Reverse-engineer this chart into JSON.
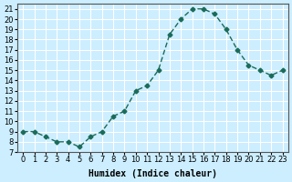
{
  "x": [
    0,
    1,
    2,
    3,
    4,
    5,
    6,
    7,
    8,
    9,
    10,
    11,
    12,
    13,
    14,
    15,
    16,
    17,
    18,
    19,
    20,
    21,
    22,
    23
  ],
  "y": [
    9.0,
    9.0,
    8.5,
    8.0,
    8.0,
    7.5,
    8.5,
    9.0,
    10.5,
    11.0,
    13.0,
    13.5,
    15.0,
    18.5,
    20.0,
    21.0,
    21.0,
    20.5,
    19.0,
    17.0,
    15.5,
    15.0,
    14.5,
    15.0
  ],
  "line_color": "#1a6b5a",
  "marker_color": "#1a6b5a",
  "bg_color": "#cceeff",
  "grid_color": "#ffffff",
  "xlabel": "Humidex (Indice chaleur)",
  "ylabel": "",
  "xlim": [
    -0.5,
    23.5
  ],
  "ylim": [
    7,
    21.5
  ],
  "yticks": [
    7,
    8,
    9,
    10,
    11,
    12,
    13,
    14,
    15,
    16,
    17,
    18,
    19,
    20,
    21
  ],
  "xticks": [
    0,
    1,
    2,
    3,
    4,
    5,
    6,
    7,
    8,
    9,
    10,
    11,
    12,
    13,
    14,
    15,
    16,
    17,
    18,
    19,
    20,
    21,
    22,
    23
  ],
  "tick_fontsize": 6,
  "label_fontsize": 7
}
